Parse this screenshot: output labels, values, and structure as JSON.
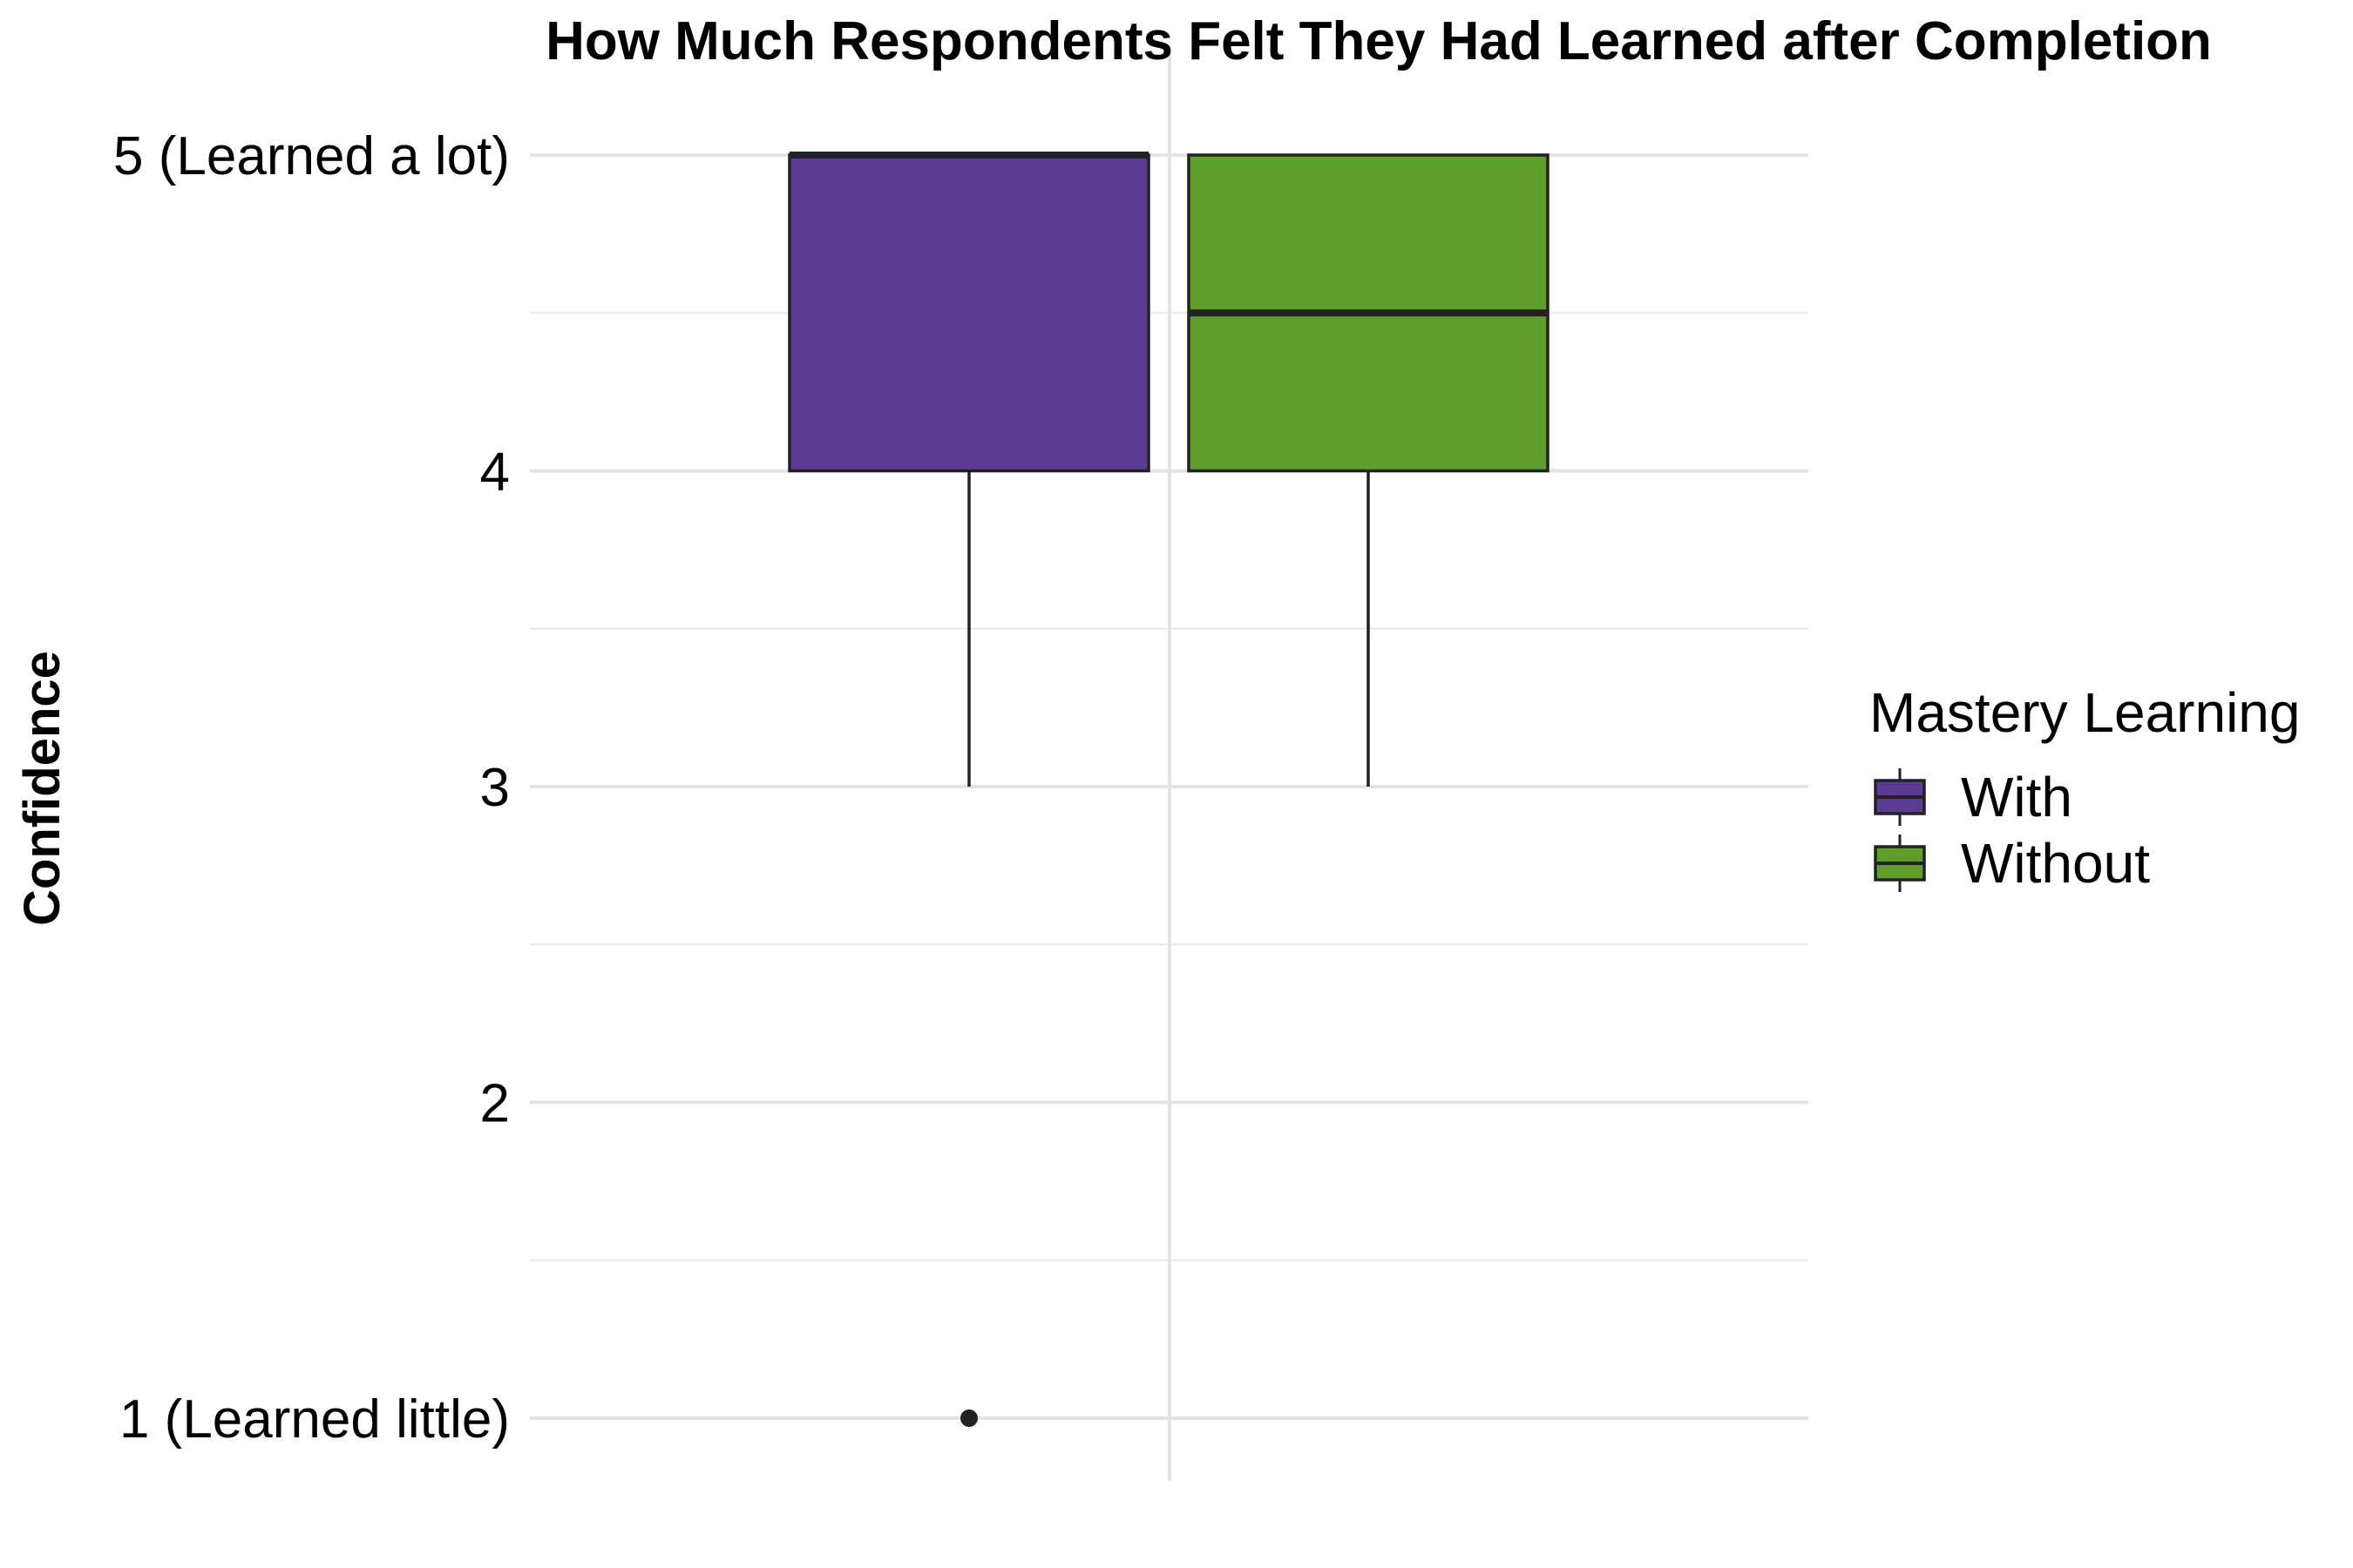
{
  "chart_data": {
    "type": "boxplot",
    "title": "How Much Respondents Felt They Had Learned after Completion",
    "ylabel": "Confidence",
    "xlabel": "",
    "ylim": [
      0.8,
      5.2
    ],
    "yticks": [
      {
        "value": 1,
        "label": "1 (Learned little)"
      },
      {
        "value": 2,
        "label": "2"
      },
      {
        "value": 3,
        "label": "3"
      },
      {
        "value": 4,
        "label": "4"
      },
      {
        "value": 5,
        "label": "5 (Learned a lot)"
      }
    ],
    "grid": true,
    "legend": {
      "title": "Mastery Learning",
      "position": "right"
    },
    "series": [
      {
        "name": "With",
        "color": "#5B3C92",
        "lower_whisker": 3,
        "q1": 4,
        "median": 5,
        "q3": 5,
        "upper_whisker": 5,
        "outliers": [
          1
        ]
      },
      {
        "name": "Without",
        "color": "#5F9E2A",
        "lower_whisker": 3,
        "q1": 4,
        "median": 4.5,
        "q3": 5,
        "upper_whisker": 5,
        "outliers": []
      }
    ]
  }
}
